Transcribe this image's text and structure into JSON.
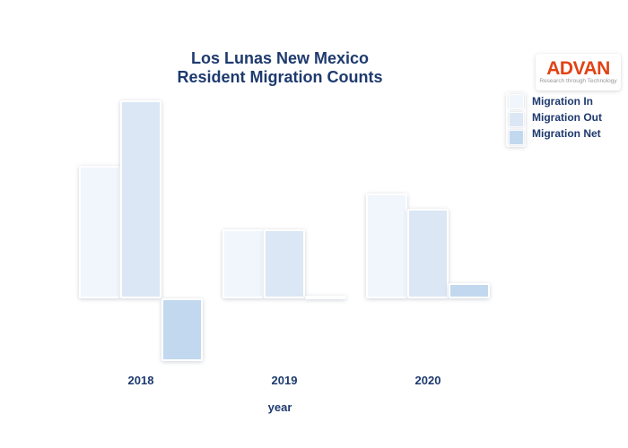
{
  "title": {
    "line1": "Los Lunas New Mexico",
    "line2": "Resident Migration Counts"
  },
  "logo": {
    "name": "ADVAN",
    "tagline": "Research through Technology"
  },
  "legend": {
    "items": [
      {
        "label": "Migration In",
        "color": "#f0f6fc"
      },
      {
        "label": "Migration Out",
        "color": "#dbe7f5"
      },
      {
        "label": "Migration Net",
        "color": "#c2d8ef"
      }
    ]
  },
  "x_axis": {
    "ticks": [
      "2018",
      "2019",
      "2020"
    ],
    "label": "year"
  },
  "chart_data": {
    "type": "bar",
    "title": "Los Lunas New Mexico Resident Migration Counts",
    "categories": [
      "2018",
      "2019",
      "2020"
    ],
    "series": [
      {
        "name": "Migration In",
        "color": "#f0f6fc",
        "values": [
          148,
          77,
          117
        ]
      },
      {
        "name": "Migration Out",
        "color": "#dbe7f5",
        "values": [
          221,
          77,
          100
        ]
      },
      {
        "name": "Migration Net",
        "color": "#c2d8ef",
        "values": [
          -70,
          3,
          17
        ]
      }
    ],
    "xlabel": "year",
    "ylabel": "",
    "ylim": [
      -80,
      230
    ],
    "units": "relative height; no y-axis ticks or gridlines shown in source chart",
    "grid": false,
    "y_axis_shown": false,
    "legend_position": "right"
  },
  "colors": {
    "text": "#1e3a6e",
    "logo_red": "#e04315",
    "tagline_gray": "#979797",
    "background": "#ffffff"
  }
}
